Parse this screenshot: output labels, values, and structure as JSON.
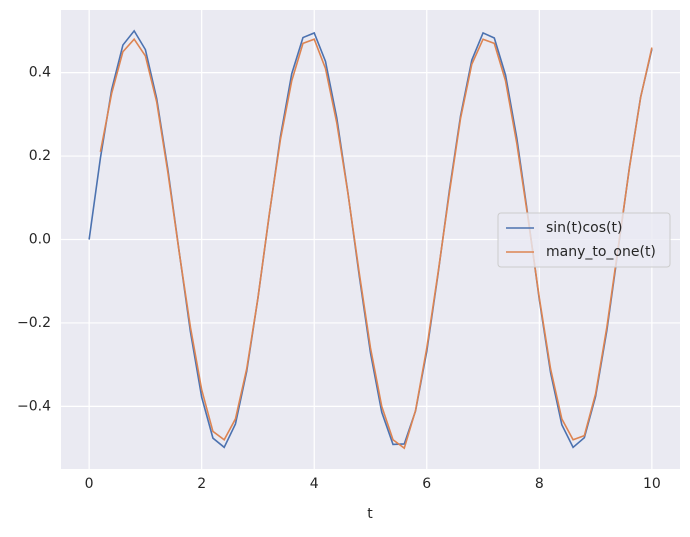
{
  "chart_data": {
    "type": "line",
    "x": [
      0,
      0.2,
      0.4,
      0.6,
      0.8,
      1,
      1.2,
      1.4,
      1.6,
      1.8,
      2,
      2.2,
      2.4,
      2.6,
      2.8,
      3,
      3.2,
      3.4,
      3.6,
      3.8,
      4,
      4.2,
      4.4,
      4.6,
      4.8,
      5,
      5.2,
      5.4,
      5.6,
      5.8,
      6,
      6.2,
      6.4,
      6.6,
      6.8,
      7,
      7.2,
      7.4,
      7.6,
      7.8,
      8,
      8.2,
      8.4,
      8.6,
      8.8,
      9,
      9.2,
      9.4,
      9.6,
      9.8,
      10
    ],
    "series": [
      {
        "name": "sin(t)cos(t)",
        "color": "#4c72b0",
        "values": [
          0,
          0.195,
          0.359,
          0.466,
          0.5,
          0.455,
          0.338,
          0.167,
          -0.029,
          -0.221,
          -0.378,
          -0.476,
          -0.498,
          -0.442,
          -0.316,
          -0.14,
          0.058,
          0.247,
          0.397,
          0.484,
          0.495,
          0.427,
          0.292,
          0.111,
          -0.087,
          -0.272,
          -0.414,
          -0.491,
          -0.49,
          -0.411,
          -0.268,
          -0.083,
          0.116,
          0.296,
          0.43,
          0.495,
          0.483,
          0.394,
          0.243,
          0.054,
          -0.144,
          -0.319,
          -0.444,
          -0.498,
          -0.475,
          -0.376,
          -0.218,
          -0.025,
          0.172,
          0.341,
          0.456
        ]
      },
      {
        "name": "many_to_one(t)",
        "color": "#dd8452",
        "values": [
          null,
          0.21,
          0.35,
          0.45,
          0.48,
          0.44,
          0.33,
          0.16,
          -0.03,
          -0.21,
          -0.36,
          -0.46,
          -0.48,
          -0.43,
          -0.31,
          -0.14,
          0.06,
          0.24,
          0.38,
          0.47,
          0.48,
          0.41,
          0.28,
          0.11,
          -0.08,
          -0.26,
          -0.4,
          -0.48,
          -0.5,
          -0.41,
          -0.26,
          -0.08,
          0.11,
          0.29,
          0.42,
          0.48,
          0.47,
          0.38,
          0.23,
          0.05,
          -0.14,
          -0.31,
          -0.43,
          -0.48,
          -0.47,
          -0.37,
          -0.21,
          -0.02,
          0.17,
          0.34,
          0.46
        ]
      }
    ],
    "x_label": "t",
    "xlim": [
      -0.5,
      10.5
    ],
    "ylim": [
      -0.55,
      0.55
    ],
    "xticks": [
      0,
      2,
      4,
      6,
      8,
      10
    ],
    "yticks": [
      {
        "value": -0.4,
        "label": "−0.4"
      },
      {
        "value": -0.2,
        "label": "−0.2"
      },
      {
        "value": 0,
        "label": "0.0"
      },
      0.2,
      0.4
    ],
    "grid": true,
    "legend": "right"
  }
}
